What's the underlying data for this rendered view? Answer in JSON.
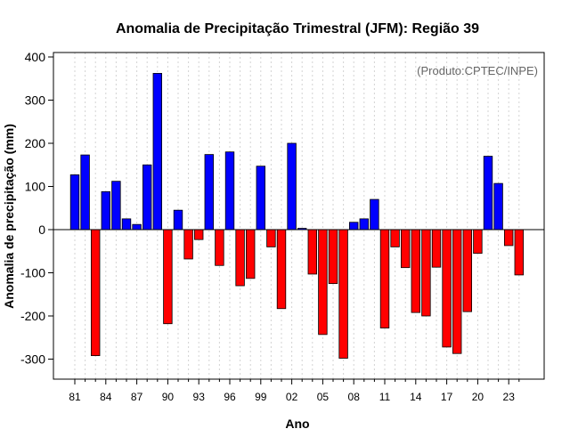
{
  "chart_data": {
    "type": "bar",
    "title": "Anomalia de Precipitação Trimestral (JFM): Região 39",
    "xlabel": "Ano",
    "ylabel": "Anomalia de precipitação (mm)",
    "credit": "(Produto:CPTEC/INPE)",
    "ylim": [
      -350,
      420
    ],
    "yticks": [
      -300,
      -200,
      -100,
      0,
      100,
      200,
      300,
      400
    ],
    "years": [
      1981,
      1982,
      1983,
      1984,
      1985,
      1986,
      1987,
      1988,
      1989,
      1990,
      1991,
      1992,
      1993,
      1994,
      1995,
      1996,
      1997,
      1998,
      1999,
      2000,
      2001,
      2002,
      2003,
      2004,
      2005,
      2006,
      2007,
      2008,
      2009,
      2010,
      2011,
      2012,
      2013,
      2014,
      2015,
      2016,
      2017,
      2018,
      2019,
      2020,
      2021,
      2022,
      2023,
      2024
    ],
    "values": [
      127,
      173,
      -292,
      88,
      112,
      25,
      12,
      150,
      362,
      -218,
      45,
      -68,
      -23,
      174,
      -83,
      180,
      -130,
      -113,
      147,
      -40,
      -183,
      200,
      3,
      -103,
      -243,
      -125,
      -298,
      17,
      25,
      70,
      -228,
      -40,
      -88,
      -192,
      -200,
      -87,
      -272,
      -287,
      -190,
      -55,
      170,
      107,
      -37,
      -105
    ],
    "xtick_labels": [
      "81",
      "84",
      "87",
      "90",
      "93",
      "96",
      "99",
      "02",
      "05",
      "08",
      "11",
      "14",
      "17",
      "20",
      "23"
    ],
    "colors": {
      "positive": "#0000ff",
      "negative": "#ff0000",
      "grid": "#d3d3d3",
      "zero_line": "#000000",
      "credit": "#666666"
    },
    "grid": true
  }
}
